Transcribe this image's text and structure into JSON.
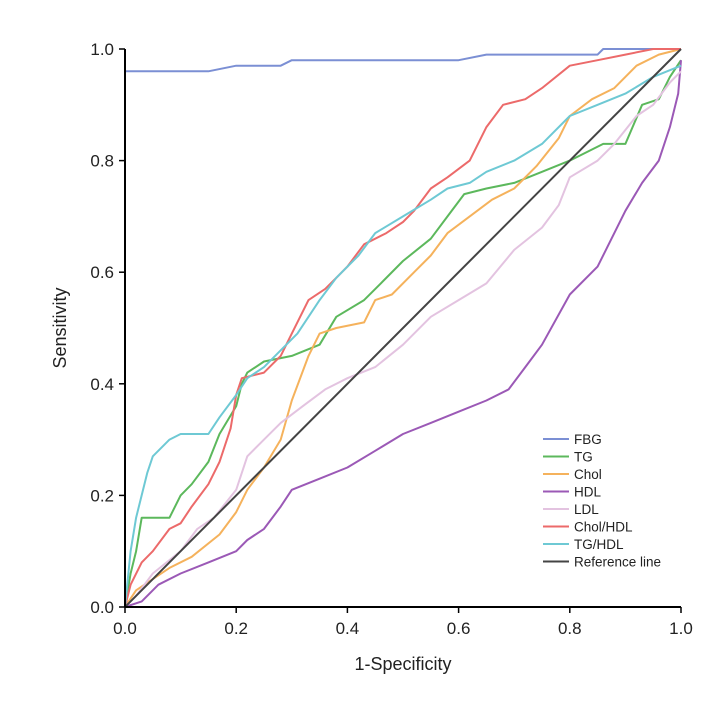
{
  "chart_data": {
    "type": "line",
    "title": "",
    "xlabel": "1-Specificity",
    "ylabel": "Sensitivity",
    "xlim": [
      0,
      1
    ],
    "ylim": [
      0,
      1
    ],
    "xticks": [
      "0.0",
      "0.2",
      "0.4",
      "0.6",
      "0.8",
      "1.0"
    ],
    "yticks": [
      "0.0",
      "0.2",
      "0.4",
      "0.6",
      "0.8",
      "1.0"
    ],
    "grid": false,
    "legend_position": "bottom-right",
    "series": [
      {
        "name": "FBG",
        "color": "#7b8fd4",
        "points": [
          [
            0,
            0.96
          ],
          [
            0.05,
            0.96
          ],
          [
            0.15,
            0.96
          ],
          [
            0.2,
            0.97
          ],
          [
            0.25,
            0.97
          ],
          [
            0.28,
            0.97
          ],
          [
            0.3,
            0.98
          ],
          [
            0.4,
            0.98
          ],
          [
            0.6,
            0.98
          ],
          [
            0.65,
            0.99
          ],
          [
            0.85,
            0.99
          ],
          [
            0.86,
            1.0
          ],
          [
            1,
            1.0
          ]
        ]
      },
      {
        "name": "TG",
        "color": "#5cb85c",
        "points": [
          [
            0,
            0
          ],
          [
            0.01,
            0.06
          ],
          [
            0.02,
            0.1
          ],
          [
            0.03,
            0.16
          ],
          [
            0.08,
            0.16
          ],
          [
            0.1,
            0.2
          ],
          [
            0.12,
            0.22
          ],
          [
            0.15,
            0.26
          ],
          [
            0.17,
            0.31
          ],
          [
            0.2,
            0.36
          ],
          [
            0.21,
            0.4
          ],
          [
            0.22,
            0.42
          ],
          [
            0.25,
            0.44
          ],
          [
            0.3,
            0.45
          ],
          [
            0.35,
            0.47
          ],
          [
            0.38,
            0.52
          ],
          [
            0.43,
            0.55
          ],
          [
            0.46,
            0.58
          ],
          [
            0.5,
            0.62
          ],
          [
            0.55,
            0.66
          ],
          [
            0.58,
            0.7
          ],
          [
            0.61,
            0.74
          ],
          [
            0.65,
            0.75
          ],
          [
            0.7,
            0.76
          ],
          [
            0.75,
            0.78
          ],
          [
            0.8,
            0.8
          ],
          [
            0.86,
            0.83
          ],
          [
            0.9,
            0.83
          ],
          [
            0.93,
            0.9
          ],
          [
            0.96,
            0.91
          ],
          [
            0.98,
            0.95
          ],
          [
            1,
            0.98
          ]
        ]
      },
      {
        "name": "Chol",
        "color": "#f5b25c",
        "points": [
          [
            0,
            0
          ],
          [
            0.02,
            0.03
          ],
          [
            0.05,
            0.05
          ],
          [
            0.08,
            0.07
          ],
          [
            0.12,
            0.09
          ],
          [
            0.17,
            0.13
          ],
          [
            0.2,
            0.17
          ],
          [
            0.22,
            0.21
          ],
          [
            0.25,
            0.25
          ],
          [
            0.28,
            0.3
          ],
          [
            0.3,
            0.37
          ],
          [
            0.33,
            0.45
          ],
          [
            0.35,
            0.49
          ],
          [
            0.38,
            0.5
          ],
          [
            0.43,
            0.51
          ],
          [
            0.45,
            0.55
          ],
          [
            0.48,
            0.56
          ],
          [
            0.52,
            0.6
          ],
          [
            0.55,
            0.63
          ],
          [
            0.58,
            0.67
          ],
          [
            0.62,
            0.7
          ],
          [
            0.66,
            0.73
          ],
          [
            0.7,
            0.75
          ],
          [
            0.74,
            0.79
          ],
          [
            0.78,
            0.84
          ],
          [
            0.8,
            0.88
          ],
          [
            0.84,
            0.91
          ],
          [
            0.88,
            0.93
          ],
          [
            0.92,
            0.97
          ],
          [
            0.96,
            0.99
          ],
          [
            1,
            1
          ]
        ]
      },
      {
        "name": "HDL",
        "color": "#9b59b6",
        "points": [
          [
            0,
            0
          ],
          [
            0.03,
            0.01
          ],
          [
            0.06,
            0.04
          ],
          [
            0.1,
            0.06
          ],
          [
            0.15,
            0.08
          ],
          [
            0.2,
            0.1
          ],
          [
            0.22,
            0.12
          ],
          [
            0.25,
            0.14
          ],
          [
            0.28,
            0.18
          ],
          [
            0.3,
            0.21
          ],
          [
            0.35,
            0.23
          ],
          [
            0.4,
            0.25
          ],
          [
            0.45,
            0.28
          ],
          [
            0.5,
            0.31
          ],
          [
            0.55,
            0.33
          ],
          [
            0.6,
            0.35
          ],
          [
            0.65,
            0.37
          ],
          [
            0.69,
            0.39
          ],
          [
            0.72,
            0.43
          ],
          [
            0.75,
            0.47
          ],
          [
            0.8,
            0.56
          ],
          [
            0.85,
            0.61
          ],
          [
            0.9,
            0.71
          ],
          [
            0.93,
            0.76
          ],
          [
            0.96,
            0.8
          ],
          [
            0.98,
            0.86
          ],
          [
            0.995,
            0.92
          ],
          [
            1,
            0.98
          ]
        ]
      },
      {
        "name": "LDL",
        "color": "#e3c3e0",
        "points": [
          [
            0,
            0
          ],
          [
            0.02,
            0.02
          ],
          [
            0.05,
            0.06
          ],
          [
            0.1,
            0.1
          ],
          [
            0.13,
            0.14
          ],
          [
            0.16,
            0.16
          ],
          [
            0.2,
            0.21
          ],
          [
            0.22,
            0.27
          ],
          [
            0.25,
            0.3
          ],
          [
            0.28,
            0.33
          ],
          [
            0.32,
            0.36
          ],
          [
            0.36,
            0.39
          ],
          [
            0.4,
            0.41
          ],
          [
            0.45,
            0.43
          ],
          [
            0.5,
            0.47
          ],
          [
            0.55,
            0.52
          ],
          [
            0.6,
            0.55
          ],
          [
            0.65,
            0.58
          ],
          [
            0.7,
            0.64
          ],
          [
            0.75,
            0.68
          ],
          [
            0.78,
            0.72
          ],
          [
            0.8,
            0.77
          ],
          [
            0.85,
            0.8
          ],
          [
            0.88,
            0.83
          ],
          [
            0.92,
            0.88
          ],
          [
            0.95,
            0.9
          ],
          [
            0.98,
            0.94
          ],
          [
            1,
            0.96
          ]
        ]
      },
      {
        "name": "Chol/HDL",
        "color": "#ec6a6a",
        "points": [
          [
            0,
            0
          ],
          [
            0.01,
            0.04
          ],
          [
            0.03,
            0.08
          ],
          [
            0.05,
            0.1
          ],
          [
            0.08,
            0.14
          ],
          [
            0.1,
            0.15
          ],
          [
            0.12,
            0.18
          ],
          [
            0.15,
            0.22
          ],
          [
            0.17,
            0.26
          ],
          [
            0.19,
            0.32
          ],
          [
            0.2,
            0.38
          ],
          [
            0.21,
            0.41
          ],
          [
            0.25,
            0.42
          ],
          [
            0.28,
            0.45
          ],
          [
            0.3,
            0.49
          ],
          [
            0.33,
            0.55
          ],
          [
            0.36,
            0.57
          ],
          [
            0.38,
            0.59
          ],
          [
            0.4,
            0.61
          ],
          [
            0.43,
            0.65
          ],
          [
            0.47,
            0.67
          ],
          [
            0.5,
            0.69
          ],
          [
            0.52,
            0.71
          ],
          [
            0.55,
            0.75
          ],
          [
            0.58,
            0.77
          ],
          [
            0.62,
            0.8
          ],
          [
            0.65,
            0.86
          ],
          [
            0.68,
            0.9
          ],
          [
            0.72,
            0.91
          ],
          [
            0.75,
            0.93
          ],
          [
            0.8,
            0.97
          ],
          [
            0.85,
            0.98
          ],
          [
            0.9,
            0.99
          ],
          [
            0.95,
            1
          ],
          [
            1,
            1
          ]
        ]
      },
      {
        "name": "TG/HDL",
        "color": "#6ec9d4",
        "points": [
          [
            0,
            0
          ],
          [
            0.005,
            0.05
          ],
          [
            0.01,
            0.1
          ],
          [
            0.02,
            0.16
          ],
          [
            0.04,
            0.24
          ],
          [
            0.05,
            0.27
          ],
          [
            0.08,
            0.3
          ],
          [
            0.1,
            0.31
          ],
          [
            0.15,
            0.31
          ],
          [
            0.17,
            0.34
          ],
          [
            0.2,
            0.38
          ],
          [
            0.22,
            0.41
          ],
          [
            0.25,
            0.43
          ],
          [
            0.28,
            0.46
          ],
          [
            0.31,
            0.49
          ],
          [
            0.35,
            0.55
          ],
          [
            0.38,
            0.59
          ],
          [
            0.42,
            0.63
          ],
          [
            0.45,
            0.67
          ],
          [
            0.5,
            0.7
          ],
          [
            0.55,
            0.73
          ],
          [
            0.58,
            0.75
          ],
          [
            0.62,
            0.76
          ],
          [
            0.65,
            0.78
          ],
          [
            0.7,
            0.8
          ],
          [
            0.75,
            0.83
          ],
          [
            0.8,
            0.88
          ],
          [
            0.85,
            0.9
          ],
          [
            0.9,
            0.92
          ],
          [
            0.95,
            0.95
          ],
          [
            1,
            0.97
          ]
        ]
      },
      {
        "name": "Reference line",
        "color": "#444444",
        "points": [
          [
            0,
            0
          ],
          [
            1,
            1
          ]
        ]
      }
    ]
  }
}
